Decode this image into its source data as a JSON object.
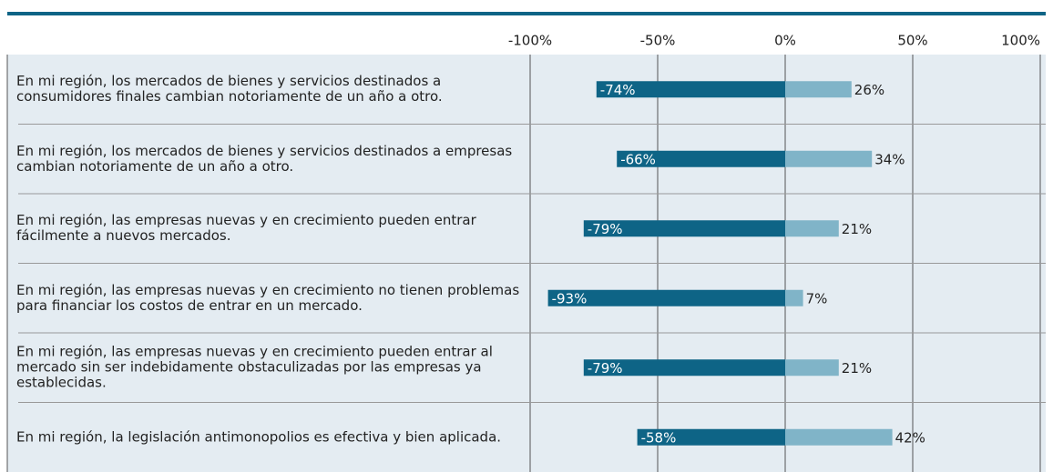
{
  "chart_data": {
    "type": "diverging-bar",
    "categories": [
      "En mi región, los mercados de bienes y servicios destinados a consumidores finales cambian notoriamente de un año a otro.",
      "En mi región, los mercados de bienes y servicios destinados a empresas cambian notoriamente de un año a otro.",
      "En mi región, las empresas nuevas y en crecimiento pueden entrar fácilmente a nuevos mercados.",
      "En mi región, las empresas nuevas y en crecimiento no tienen problemas para financiar los costos de entrar en un mercado.",
      "En mi región, las empresas nuevas y en crecimiento pueden entrar al mercado sin ser indebidamente obstaculizadas por las empresas ya establecidas.",
      "En mi región, la legislación antimonopolios es efectiva y bien aplicada."
    ],
    "series": [
      {
        "color": "#0e6486",
        "values": [
          -74,
          -66,
          -79,
          -93,
          -79,
          -58
        ],
        "value_labels": [
          "-74%",
          "-66%",
          "-79%",
          "-93%",
          "-79%",
          "-58%"
        ]
      },
      {
        "color": "#80b4c8",
        "values": [
          26,
          34,
          21,
          7,
          21,
          42
        ],
        "value_labels": [
          "26%",
          "34%",
          "21%",
          "7%",
          "21%",
          "42%"
        ]
      }
    ],
    "xlim": [
      -100,
      100
    ],
    "xticks": [
      {
        "value": -100,
        "label": "-100%"
      },
      {
        "value": -50,
        "label": "-50%"
      },
      {
        "value": 0,
        "label": "0%"
      },
      {
        "value": 50,
        "label": "50%"
      },
      {
        "value": 100,
        "label": "100%"
      }
    ],
    "grid": true
  }
}
